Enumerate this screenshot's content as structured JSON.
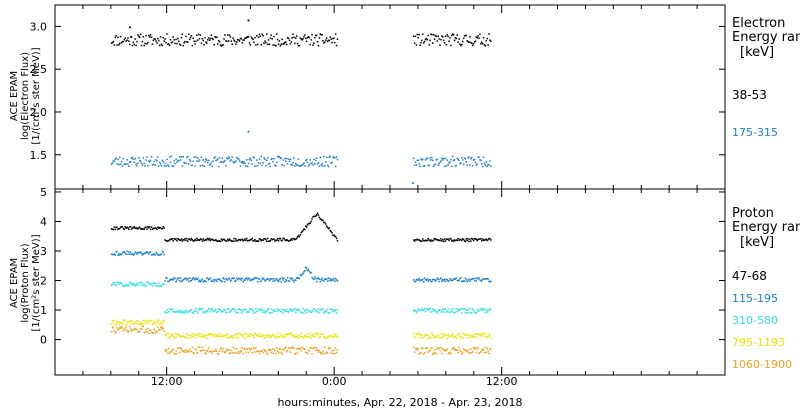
{
  "figure": {
    "x_title": "hours:minutes, Apr. 22, 2018 - Apr. 23, 2018",
    "x_tick_labels": [
      "12:00",
      "0:00",
      "12:00"
    ]
  },
  "chart_data": [
    {
      "type": "scatter",
      "ylabel": [
        "ACE EPAM",
        "log(Electron Flux)",
        "[1/(cm²s ster MeV)]"
      ],
      "legend_title": [
        "Electron",
        "Energy ran",
        "[keV]"
      ],
      "legend_placement": "right",
      "xlim": [
        4,
        52
      ],
      "ylim": [
        1.1,
        3.25
      ],
      "ytick_values": [
        1.5,
        2.0,
        2.5,
        3.0
      ],
      "ytick_labels": [
        "1.5",
        "2.0",
        "2.5",
        "3.0"
      ],
      "x_ticks_hours": [
        12,
        24,
        36
      ],
      "data_gap_hours": [
        24.2,
        29.6
      ],
      "series": [
        {
          "name": "38-53",
          "color": "#000000",
          "level": 2.85,
          "jitter": 0.07,
          "seed": 11,
          "spikes": [
            [
              17.8,
              3.08
            ],
            [
              9.3,
              3.0
            ]
          ]
        },
        {
          "name": "175-315",
          "color": "#1a7ecf",
          "level": 1.43,
          "jitter": 0.06,
          "seed": 23,
          "spikes": [
            [
              17.8,
              1.78
            ],
            [
              29.6,
              1.18
            ]
          ]
        }
      ]
    },
    {
      "type": "scatter",
      "ylabel": [
        "ACE EPAM",
        "log(Proton Flux)",
        "[1/(cm²s ster MeV)]"
      ],
      "legend_title": [
        "Proton",
        "Energy ran",
        "[keV]"
      ],
      "legend_placement": "right",
      "xlim": [
        4,
        52
      ],
      "ylim": [
        -1.2,
        5.1
      ],
      "ytick_values": [
        0,
        1,
        2,
        3,
        4,
        5
      ],
      "ytick_labels": [
        "0",
        "1",
        "2",
        "3",
        "4",
        "5"
      ],
      "x_ticks_hours": [
        12,
        24,
        36
      ],
      "data_gap_hours": [
        24.2,
        29.6
      ],
      "series": [
        {
          "name": "47-68",
          "color": "#000000",
          "level": 3.4,
          "early_level": 3.8,
          "jitter": 0.05,
          "seed": 31,
          "bump": {
            "start": 21.2,
            "end": 24.2,
            "peak": 4.3
          }
        },
        {
          "name": "115-195",
          "color": "#1a7ecf",
          "level": 2.05,
          "early_level": 2.95,
          "jitter": 0.07,
          "seed": 43,
          "bump": {
            "start": 21.3,
            "end": 22.6,
            "peak": 2.45
          }
        },
        {
          "name": "310-580",
          "color": "#2ee0e0",
          "level": 1.0,
          "early_level": 1.9,
          "jitter": 0.08,
          "seed": 57
        },
        {
          "name": "795-1193",
          "color": "#e6e600",
          "level": 0.15,
          "early_level": 0.6,
          "jitter": 0.09,
          "seed": 61
        },
        {
          "name": "1060-1900",
          "color": "#f0a020",
          "level": -0.35,
          "early_level": 0.35,
          "jitter": 0.12,
          "seed": 73
        }
      ]
    }
  ]
}
